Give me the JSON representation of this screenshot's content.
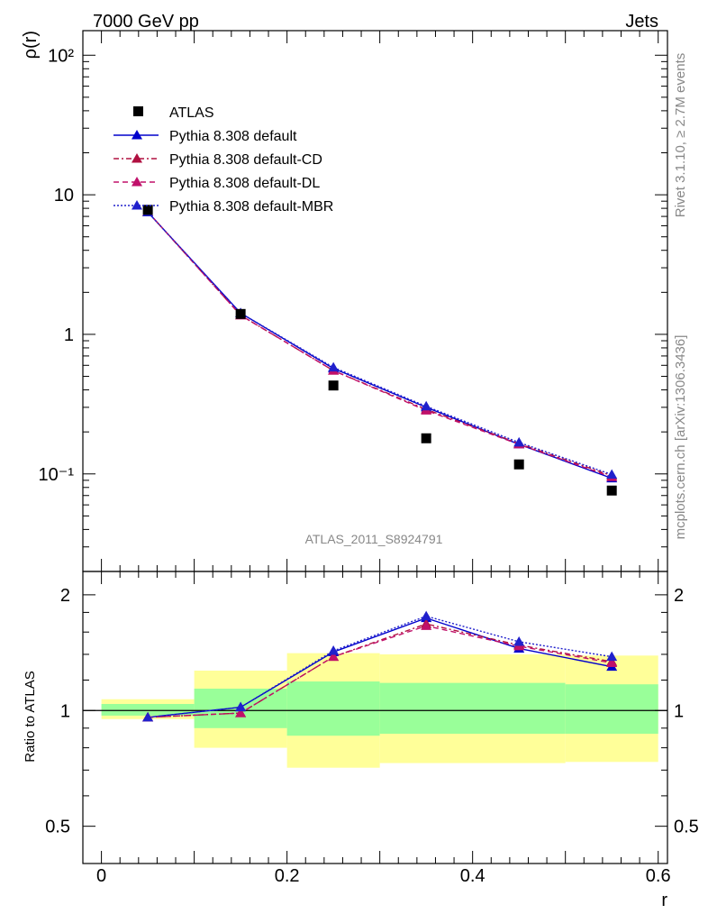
{
  "header": {
    "left": "7000 GeV pp",
    "right": "Jets"
  },
  "side": {
    "rivet": "Rivet 3.1.10, ≥ 2.7M events",
    "mcplots": "mcplots.cern.ch [arXiv:1306.3436]"
  },
  "analysis_id": "ATLAS_2011_S8924791",
  "colors": {
    "atlas": "#000000",
    "default": "#0000cc",
    "cd": "#b01040",
    "dl": "#c0106a",
    "mbr": "#2020cc",
    "band_inner": "#99ff99",
    "band_outer": "#ffff99"
  },
  "chart_data": [
    {
      "type": "line",
      "panel": "main",
      "ylabel": "ρ(r)",
      "yscale": "log",
      "xlim": [
        -0.02,
        0.61
      ],
      "ylim": [
        0.02,
        150
      ],
      "y_ticklabels": [
        "10⁻¹",
        "1",
        "10",
        "10²"
      ],
      "y_tickvalues": [
        0.1,
        1,
        10,
        100
      ],
      "x": [
        0.05,
        0.15,
        0.25,
        0.35,
        0.45,
        0.55
      ],
      "legend_placement": "top-left",
      "series": [
        {
          "name": "ATLAS",
          "marker": "square",
          "values": [
            7.8,
            1.4,
            0.43,
            0.18,
            0.117,
            0.076
          ]
        },
        {
          "name": "Pythia 8.308 default",
          "marker": "triangle",
          "line": "solid",
          "values": [
            7.5,
            1.42,
            0.57,
            0.3,
            0.163,
            0.093
          ]
        },
        {
          "name": "Pythia 8.308 default-CD",
          "marker": "triangle",
          "line": "dash-dot",
          "values": [
            7.55,
            1.37,
            0.55,
            0.29,
            0.165,
            0.097
          ]
        },
        {
          "name": "Pythia 8.308 default-DL",
          "marker": "triangle",
          "line": "dashed",
          "values": [
            7.55,
            1.37,
            0.55,
            0.285,
            0.163,
            0.095
          ]
        },
        {
          "name": "Pythia 8.308 default-MBR",
          "marker": "triangle",
          "line": "dotted",
          "values": [
            7.5,
            1.42,
            0.58,
            0.305,
            0.168,
            0.099
          ]
        }
      ]
    },
    {
      "type": "line",
      "panel": "ratio",
      "ylabel": "Ratio to ATLAS",
      "xlabel": "r",
      "yscale": "log",
      "xlim": [
        -0.02,
        0.61
      ],
      "ylim": [
        0.4,
        2.3
      ],
      "x_ticklabels": [
        "0",
        "0.2",
        "0.4",
        "0.6"
      ],
      "x_tickvalues": [
        0,
        0.2,
        0.4,
        0.6
      ],
      "y_ticklabels": [
        "0.5",
        "1",
        "2"
      ],
      "y_tickvalues": [
        0.5,
        1,
        2
      ],
      "x": [
        0.05,
        0.15,
        0.25,
        0.35,
        0.45,
        0.55
      ],
      "bands": {
        "bins": [
          [
            0,
            0.1
          ],
          [
            0.1,
            0.2
          ],
          [
            0.2,
            0.3
          ],
          [
            0.3,
            0.5
          ],
          [
            0.5,
            0.6
          ]
        ],
        "inner": [
          [
            0.97,
            1.04
          ],
          [
            0.9,
            1.14
          ],
          [
            0.86,
            1.19
          ],
          [
            0.87,
            1.18
          ],
          [
            0.87,
            1.17
          ]
        ],
        "outer": [
          [
            0.95,
            1.07
          ],
          [
            0.8,
            1.27
          ],
          [
            0.71,
            1.41
          ],
          [
            0.73,
            1.4
          ],
          [
            0.735,
            1.39
          ]
        ]
      },
      "series": [
        {
          "name": "Pythia 8.308 default",
          "values": [
            0.96,
            1.02,
            1.42,
            1.74,
            1.45,
            1.3
          ]
        },
        {
          "name": "Pythia 8.308 default-CD",
          "values": [
            0.96,
            0.985,
            1.38,
            1.68,
            1.48,
            1.34
          ]
        },
        {
          "name": "Pythia 8.308 default-DL",
          "values": [
            0.96,
            0.985,
            1.38,
            1.66,
            1.47,
            1.33
          ]
        },
        {
          "name": "Pythia 8.308 default-MBR",
          "values": [
            0.96,
            1.02,
            1.43,
            1.76,
            1.51,
            1.38
          ]
        }
      ]
    }
  ]
}
